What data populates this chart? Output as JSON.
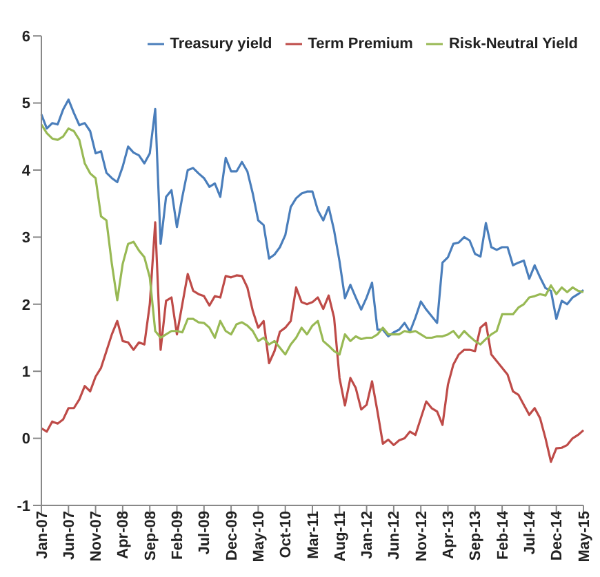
{
  "chart_data": {
    "type": "line",
    "categories": [
      "Jan-07",
      null,
      null,
      null,
      null,
      "Jun-07",
      null,
      null,
      null,
      null,
      "Nov-07",
      null,
      null,
      null,
      null,
      "Apr-08",
      null,
      null,
      null,
      null,
      "Sep-08",
      null,
      null,
      null,
      null,
      "Feb-09",
      null,
      null,
      null,
      null,
      "Jul-09",
      null,
      null,
      null,
      null,
      "Dec-09",
      null,
      null,
      null,
      null,
      "May-10",
      null,
      null,
      null,
      null,
      "Oct-10",
      null,
      null,
      null,
      null,
      "Mar-11",
      null,
      null,
      null,
      null,
      "Aug-11",
      null,
      null,
      null,
      null,
      "Jan-12",
      null,
      null,
      null,
      null,
      "Jun-12",
      null,
      null,
      null,
      null,
      "Nov-12",
      null,
      null,
      null,
      null,
      "Apr-13",
      null,
      null,
      null,
      null,
      "Sep-13",
      null,
      null,
      null,
      null,
      "Feb-14",
      null,
      null,
      null,
      null,
      "Jul-14",
      null,
      null,
      null,
      null,
      "Dec-14",
      null,
      null,
      null,
      null,
      "May-15"
    ],
    "series": [
      {
        "name": "Treasury yield",
        "color": "#4a7ebb",
        "values": [
          4.83,
          4.62,
          4.7,
          4.68,
          4.9,
          5.05,
          4.85,
          4.67,
          4.7,
          4.58,
          4.25,
          4.28,
          3.96,
          3.88,
          3.82,
          4.05,
          4.35,
          4.26,
          4.22,
          4.1,
          4.25,
          4.91,
          2.9,
          3.6,
          3.7,
          3.15,
          3.6,
          4.0,
          4.03,
          3.95,
          3.88,
          3.75,
          3.8,
          3.6,
          4.18,
          3.98,
          3.98,
          4.12,
          3.98,
          3.65,
          3.25,
          3.18,
          2.68,
          2.74,
          2.85,
          3.03,
          3.45,
          3.58,
          3.65,
          3.68,
          3.68,
          3.4,
          3.25,
          3.45,
          3.1,
          2.64,
          2.09,
          2.29,
          2.1,
          1.92,
          2.1,
          2.32,
          1.62,
          1.62,
          1.52,
          1.58,
          1.62,
          1.72,
          1.59,
          1.8,
          2.04,
          1.92,
          1.82,
          1.72,
          2.62,
          2.7,
          2.9,
          2.92,
          3.0,
          2.95,
          2.75,
          2.71,
          3.21,
          2.85,
          2.81,
          2.85,
          2.85,
          2.58,
          2.62,
          2.65,
          2.38,
          2.58,
          2.4,
          2.24,
          2.2,
          1.78,
          2.05,
          2.0,
          2.1,
          2.15,
          2.21
        ]
      },
      {
        "name": "Term Premium",
        "color": "#be4b48",
        "values": [
          0.15,
          0.1,
          0.25,
          0.22,
          0.28,
          0.45,
          0.45,
          0.58,
          0.78,
          0.7,
          0.92,
          1.05,
          1.3,
          1.55,
          1.75,
          1.45,
          1.43,
          1.32,
          1.43,
          1.4,
          2.0,
          3.22,
          1.32,
          2.05,
          2.1,
          1.55,
          2.0,
          2.45,
          2.2,
          2.15,
          2.12,
          1.98,
          2.12,
          2.1,
          2.42,
          2.4,
          2.43,
          2.42,
          2.25,
          1.9,
          1.65,
          1.75,
          1.12,
          1.3,
          1.59,
          1.65,
          1.75,
          2.25,
          2.03,
          2.0,
          2.03,
          2.1,
          1.93,
          2.13,
          1.8,
          0.9,
          0.49,
          0.9,
          0.75,
          0.43,
          0.5,
          0.85,
          0.4,
          -0.08,
          -0.02,
          -0.1,
          -0.03,
          0.0,
          0.1,
          0.05,
          0.3,
          0.55,
          0.45,
          0.4,
          0.2,
          0.8,
          1.1,
          1.25,
          1.32,
          1.32,
          1.3,
          1.65,
          1.72,
          1.25,
          1.15,
          1.05,
          0.95,
          0.7,
          0.65,
          0.5,
          0.35,
          0.45,
          0.3,
          0.0,
          -0.35,
          -0.15,
          -0.14,
          -0.1,
          0.0,
          0.05,
          0.12
        ]
      },
      {
        "name": "Risk-Neutral Yield",
        "color": "#98b954",
        "values": [
          4.68,
          4.55,
          4.47,
          4.45,
          4.5,
          4.62,
          4.58,
          4.45,
          4.1,
          3.95,
          3.88,
          3.31,
          3.25,
          2.6,
          2.06,
          2.6,
          2.9,
          2.93,
          2.8,
          2.7,
          2.4,
          1.6,
          1.5,
          1.55,
          1.6,
          1.6,
          1.58,
          1.78,
          1.78,
          1.73,
          1.72,
          1.65,
          1.5,
          1.75,
          1.6,
          1.55,
          1.7,
          1.73,
          1.68,
          1.6,
          1.45,
          1.5,
          1.4,
          1.45,
          1.35,
          1.25,
          1.4,
          1.5,
          1.65,
          1.55,
          1.68,
          1.75,
          1.45,
          1.38,
          1.3,
          1.25,
          1.55,
          1.45,
          1.52,
          1.48,
          1.5,
          1.5,
          1.55,
          1.65,
          1.55,
          1.55,
          1.55,
          1.6,
          1.58,
          1.6,
          1.55,
          1.5,
          1.5,
          1.52,
          1.52,
          1.55,
          1.6,
          1.5,
          1.6,
          1.52,
          1.45,
          1.4,
          1.48,
          1.55,
          1.6,
          1.85,
          1.85,
          1.85,
          1.95,
          2.0,
          2.1,
          2.12,
          2.15,
          2.13,
          2.28,
          2.15,
          2.25,
          2.18,
          2.25,
          2.2,
          2.18
        ]
      }
    ],
    "ylim": [
      -1,
      6
    ],
    "yticks": [
      -1,
      0,
      1,
      2,
      3,
      4,
      5,
      6
    ],
    "grid": false,
    "legend": "top right",
    "marker": "none",
    "line_style": "solid"
  }
}
